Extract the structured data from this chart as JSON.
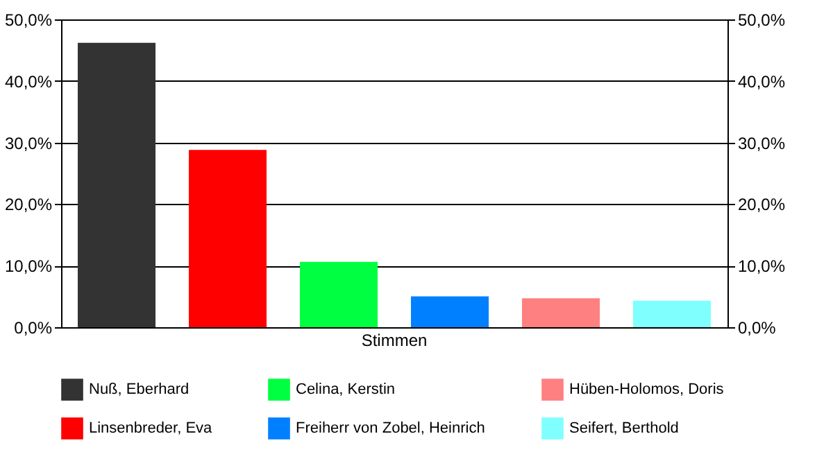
{
  "chart_data": {
    "type": "bar",
    "categories": [
      "Stimmen"
    ],
    "series": [
      {
        "name": "Nuß, Eberhard",
        "color": "#333333",
        "values": [
          46.2
        ]
      },
      {
        "name": "Linsenbreder, Eva",
        "color": "#ff0000",
        "values": [
          28.8
        ]
      },
      {
        "name": "Celina, Kerstin",
        "color": "#00ff40",
        "values": [
          10.6
        ]
      },
      {
        "name": "Freiherr von Zobel, Heinrich",
        "color": "#0080ff",
        "values": [
          5.0
        ]
      },
      {
        "name": "Hüben-Holomos, Doris",
        "color": "#ff8080",
        "values": [
          4.7
        ]
      },
      {
        "name": "Seifert, Berthold",
        "color": "#80ffff",
        "values": [
          4.3
        ]
      }
    ],
    "ylim": [
      0,
      50
    ],
    "yticks": [
      {
        "value": 0,
        "label": "0,0%"
      },
      {
        "value": 10,
        "label": "10,0%"
      },
      {
        "value": 20,
        "label": "20,0%"
      },
      {
        "value": 30,
        "label": "30,0%"
      },
      {
        "value": 40,
        "label": "40,0%"
      },
      {
        "value": 50,
        "label": "50,0%"
      }
    ],
    "grid": "y",
    "legend": "bottom"
  }
}
